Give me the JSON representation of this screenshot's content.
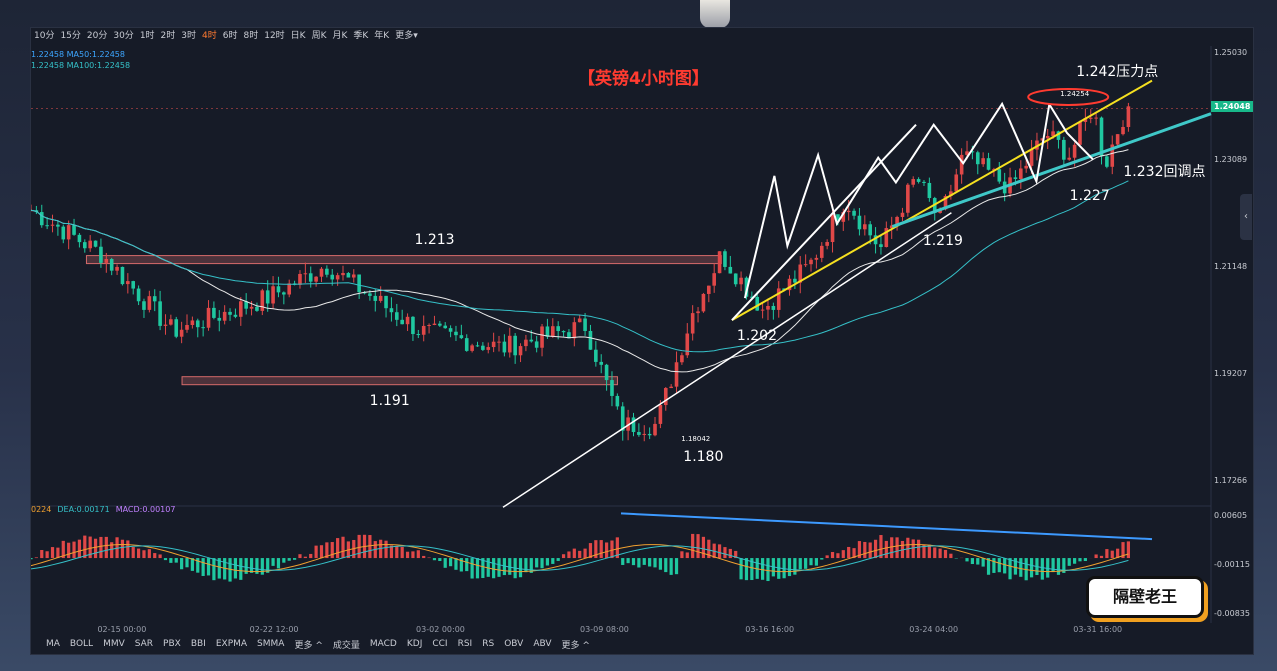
{
  "toolbar": {
    "timeframes": [
      "10分",
      "15分",
      "20分",
      "30分",
      "1时",
      "2时",
      "3时",
      "4时",
      "6时",
      "8时",
      "12时",
      "日K",
      "周K",
      "月K",
      "季K",
      "年K",
      "更多▾"
    ],
    "active": "4时"
  },
  "ma_legend": [
    {
      "text": "1.22458  MA50:1.22458",
      "color": "#3da6ff"
    },
    {
      "text": "1.22458  MA100:1.22458",
      "color": "#35c0c8"
    }
  ],
  "macd_legend": [
    {
      "text": "0224",
      "color": "#f0a030"
    },
    {
      "text": "DEA:0.00171",
      "color": "#35c0c8"
    },
    {
      "text": "MACD:0.00107",
      "color": "#c080ff"
    }
  ],
  "bottom_indicators": [
    "MA",
    "BOLL",
    "MMV",
    "SAR",
    "PBX",
    "BBI",
    "EXPMA",
    "SMMA",
    "更多 ^",
    "成交量",
    "MACD",
    "KDJ",
    "CCI",
    "RSI",
    "RS",
    "OBV",
    "ABV",
    "更多 ^"
  ],
  "badge_text": "隔壁老王",
  "side_tab_icon": "chevron-left-icon",
  "colors": {
    "up": "#e04848",
    "down": "#1fc8a0",
    "ma_white": "#e8e8e8",
    "ma_cyan": "#35c0c8",
    "annotation": "#ffffff",
    "title": "#ff3b30",
    "yellow": "#f5e020",
    "teal_arrow": "#3fc8c8",
    "macd_blue": "#3d9aff"
  },
  "chart_data": {
    "type": "candlestick",
    "title": "【英镑4小时图】",
    "y_ticks": [
      1.2503,
      1.23089,
      1.21148,
      1.19207,
      1.17266
    ],
    "ylim": [
      1.1686,
      1.2518
    ],
    "current_price": "1.24048",
    "x_ticks": [
      "02-15 00:00",
      "02-22 12:00",
      "03-02 00:00",
      "03-09 08:00",
      "03-16 16:00",
      "03-24 04:00",
      "03-31 16:00"
    ],
    "x_ticks_pos": [
      0.077,
      0.206,
      0.347,
      0.486,
      0.626,
      0.765,
      0.904
    ],
    "macd_ticks": [
      "0.00605",
      "-0.00115",
      "-0.00835"
    ],
    "macd_ylim": [
      -0.0096,
      0.0074
    ],
    "levels": [
      {
        "price": 1.213,
        "label": "1.213"
      },
      {
        "price": 1.191,
        "label": "1.191"
      }
    ],
    "points": [
      {
        "x": 0.585,
        "y": 1.1804,
        "label": "1.180",
        "small": "1.18042"
      },
      {
        "x": 0.594,
        "y": 1.202,
        "label": "1.202"
      },
      {
        "x": 0.749,
        "y": 1.219,
        "label": "1.219"
      },
      {
        "x": 0.887,
        "y": 1.227,
        "label": "1.227"
      },
      {
        "x": 0.93,
        "y": 1.232,
        "label": "1.232回调点"
      },
      {
        "x": 0.879,
        "y": 1.24254,
        "label": "1.242压力点",
        "small": "1.24254"
      }
    ]
  }
}
